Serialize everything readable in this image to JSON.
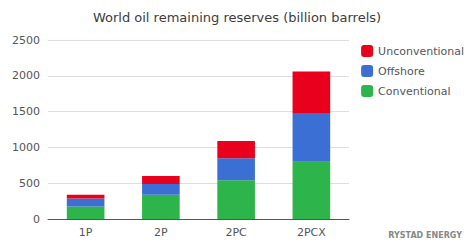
{
  "chart_data": {
    "type": "bar",
    "title": "World oil remaining reserves (billion barrels)",
    "categories": [
      "1P",
      "2P",
      "2PC",
      "2PCX"
    ],
    "series": [
      {
        "name": "Conventional",
        "color": "#2db54b",
        "values": [
          175,
          340,
          540,
          800
        ]
      },
      {
        "name": "Offshore",
        "color": "#3b6fd4",
        "values": [
          110,
          150,
          310,
          680
        ]
      },
      {
        "name": "Unconventional",
        "color": "#e8001c",
        "values": [
          55,
          110,
          240,
          580
        ]
      }
    ],
    "stacked": true,
    "ylim": [
      0,
      2500
    ],
    "yticks": [
      0,
      500,
      1000,
      1500,
      2000,
      2500
    ],
    "grid": true,
    "legend": "right",
    "annotations": [
      "RYSTAD ENERGY"
    ]
  }
}
